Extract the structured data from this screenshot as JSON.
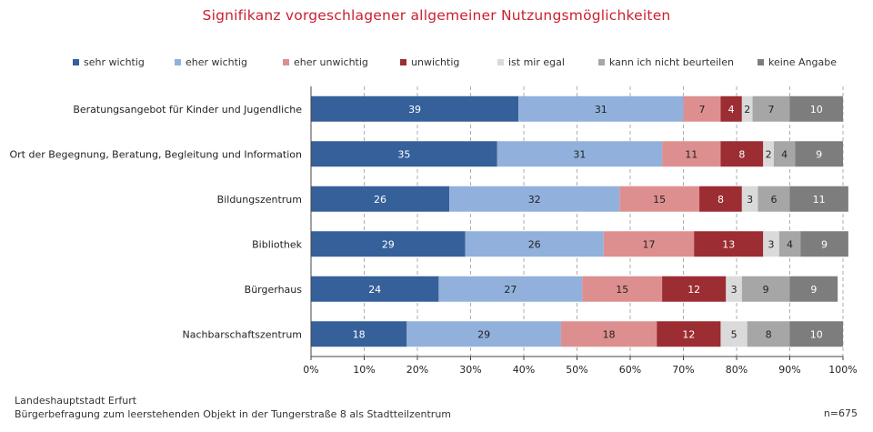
{
  "chart_data": {
    "type": "bar",
    "orientation": "horizontal",
    "stacked": true,
    "title": "Signifikanz vorgeschlagener allgemeiner Nutzungsmöglichkeiten",
    "categories": [
      "Beratungsangebot für Kinder und Jugendliche",
      "Ort der Begegnung, Beratung, Begleitung und Information",
      "Bildungszentrum",
      "Bibliothek",
      "Bürgerhaus",
      "Nachbarschaftszentrum"
    ],
    "series": [
      {
        "name": "sehr wichtig",
        "color": "#35609a",
        "values": [
          39,
          35,
          26,
          29,
          24,
          18
        ]
      },
      {
        "name": "eher wichtig",
        "color": "#91b1dc",
        "values": [
          31,
          31,
          32,
          26,
          27,
          29
        ]
      },
      {
        "name": "eher unwichtig",
        "color": "#dd8f8f",
        "values": [
          7,
          11,
          15,
          17,
          15,
          18
        ]
      },
      {
        "name": "unwichtig",
        "color": "#9b2d33",
        "values": [
          4,
          8,
          8,
          13,
          12,
          12
        ]
      },
      {
        "name": "ist mir egal",
        "color": "#dadada",
        "values": [
          2,
          2,
          3,
          3,
          3,
          5
        ]
      },
      {
        "name": "kann ich nicht beurteilen",
        "color": "#a6a6a6",
        "values": [
          7,
          4,
          6,
          4,
          9,
          8
        ]
      },
      {
        "name": "keine Angabe",
        "color": "#7d7d7d",
        "values": [
          10,
          9,
          11,
          9,
          9,
          10
        ]
      }
    ],
    "xlim": [
      0,
      100
    ],
    "xticks": [
      "0%",
      "10%",
      "20%",
      "30%",
      "40%",
      "50%",
      "60%",
      "70%",
      "80%",
      "90%",
      "100%"
    ],
    "grid": "vertical dashed",
    "legend_position": "top"
  },
  "footer": {
    "line1": "Landeshauptstadt Erfurt",
    "line2": "Bürgerbefragung zum leerstehenden Objekt in der Tungerstraße 8 als Stadtteilzentrum"
  },
  "sample_size": "n=675"
}
